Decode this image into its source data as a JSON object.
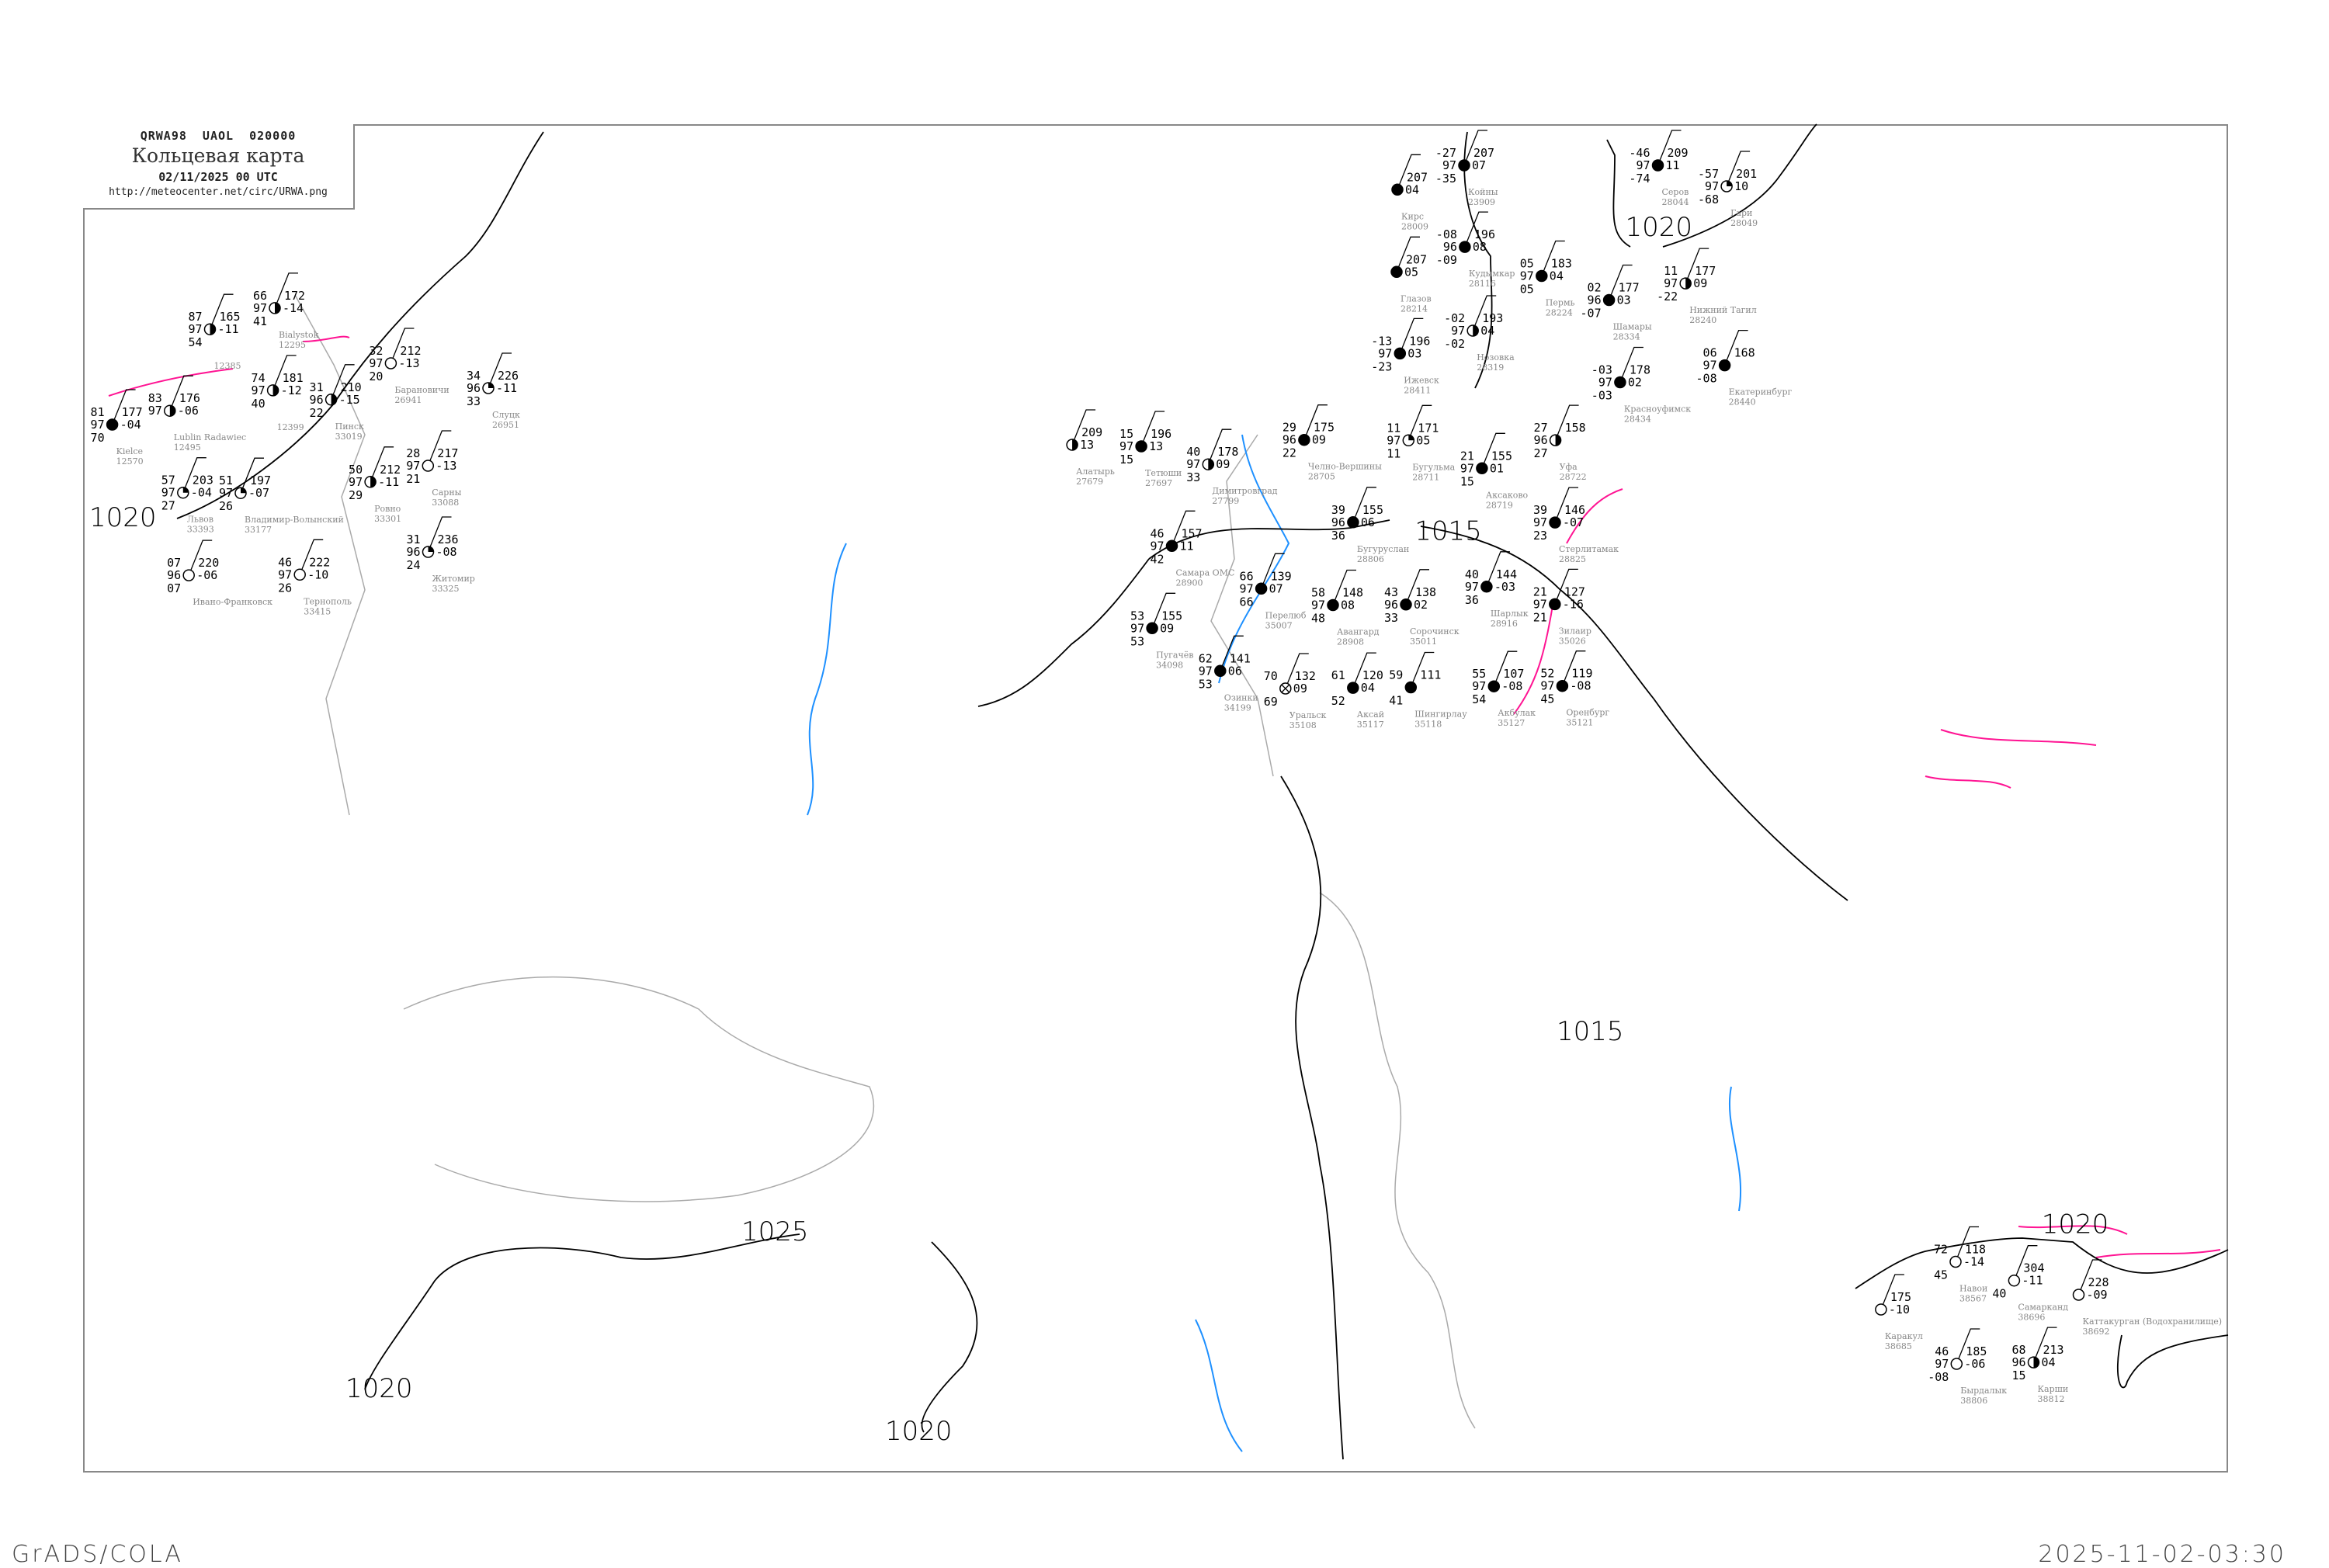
{
  "header": {
    "code": "QRWA98   UAOL   020000",
    "title": "Кольцевая карта",
    "date": "02/11/2025 00 UTC",
    "url": "http://meteocenter.net/circ/URWA.png"
  },
  "footer": {
    "left": "GrADS/COLA",
    "right": "2025-11-02-03:30"
  },
  "colors": {
    "isobar": "#000000",
    "front_like_lines": "#ff1493",
    "rivers": "#1e90ff",
    "borders": "#aaaaaa",
    "station_name": "#888888",
    "low_cloud_highlight": "#ffff99",
    "snow_marker": "#3399ff",
    "precip_marker": "#22bb22"
  },
  "isobar_labels": [
    "1020",
    "1015",
    "1020",
    "1020",
    "1025",
    "1015",
    "1020",
    "1020"
  ],
  "stations": [
    {
      "name": "Bialystok",
      "id": "12295",
      "t": "66",
      "p_tend": "97",
      "dew": "41",
      "p": "172",
      "tend": "-14",
      "cloud": "half"
    },
    {
      "name": "",
      "id": "12385",
      "t": "87",
      "p_tend": "97",
      "dew": "54",
      "p": "165",
      "tend": "-11",
      "cloud": "half"
    },
    {
      "name": "",
      "id": "12399",
      "t": "74",
      "p_tend": "97",
      "dew": "40",
      "p": "181",
      "tend": "-12",
      "cloud": "half"
    },
    {
      "name": "Kielce",
      "id": "12570",
      "t": "81",
      "p_tend": "97",
      "dew": "70",
      "p": "177",
      "tend": "-04",
      "cloud": "full"
    },
    {
      "name": "Lublin Radawiec",
      "id": "12495",
      "t": "83",
      "p_tend": "97",
      "dew": "",
      "p": "176",
      "tend": "-06",
      "cloud": "half"
    },
    {
      "name": "Владимир-Волынский",
      "id": "33177",
      "t": "51",
      "p_tend": "97",
      "dew": "26",
      "p": "197",
      "tend": "-07",
      "cloud": "quarter"
    },
    {
      "name": "Львов",
      "id": "33393",
      "t": "57",
      "p_tend": "97",
      "dew": "27",
      "p": "203",
      "tend": "-04",
      "cloud": "quarter"
    },
    {
      "name": "Ивано-Франковск",
      "id": "",
      "t": "07",
      "p_tend": "96",
      "dew": "07",
      "p": "220",
      "tend": "-06",
      "cloud": "empty"
    },
    {
      "name": "Тернополь",
      "id": "33415",
      "t": "46",
      "p_tend": "97",
      "dew": "26",
      "p": "222",
      "tend": "-10",
      "cloud": "empty"
    },
    {
      "name": "Барановичи",
      "id": "26941",
      "t": "32",
      "p_tend": "97",
      "dew": "20",
      "p": "212",
      "tend": "-13",
      "cloud": "empty"
    },
    {
      "name": "Слуцк",
      "id": "26951",
      "t": "34",
      "p_tend": "96",
      "dew": "33",
      "p": "226",
      "tend": "-11",
      "cloud": "quarter"
    },
    {
      "name": "Пинск",
      "id": "33019",
      "t": "31",
      "p_tend": "96",
      "dew": "22",
      "p": "210",
      "tend": "-15",
      "cloud": "half"
    },
    {
      "name": "Сарны",
      "id": "33088",
      "t": "28",
      "p_tend": "97",
      "dew": "21",
      "p": "217",
      "tend": "-13",
      "cloud": "empty"
    },
    {
      "name": "Ровно",
      "id": "33301",
      "t": "50",
      "p_tend": "97",
      "dew": "29",
      "p": "212",
      "tend": "-11",
      "cloud": "half"
    },
    {
      "name": "Житомир",
      "id": "33325",
      "t": "31",
      "p_tend": "96",
      "dew": "24",
      "p": "236",
      "tend": "-08",
      "cloud": "quarter"
    },
    {
      "name": "Алатырь",
      "id": "27679",
      "t": "",
      "p_tend": "",
      "dew": "",
      "p": "209",
      "tend": "13",
      "cloud": "half"
    },
    {
      "name": "Тетюши",
      "id": "27697",
      "t": "15",
      "p_tend": "97",
      "dew": "15",
      "p": "196",
      "tend": "13",
      "cloud": "full"
    },
    {
      "name": "Димитровград",
      "id": "27799",
      "t": "40",
      "p_tend": "97",
      "dew": "33",
      "p": "178",
      "tend": "09",
      "cloud": "half"
    },
    {
      "name": "Челно-Вершины",
      "id": "28705",
      "t": "29",
      "p_tend": "96",
      "dew": "22",
      "p": "175",
      "tend": "09",
      "cloud": "full"
    },
    {
      "name": "Бугульма",
      "id": "28711",
      "t": "11",
      "p_tend": "97",
      "dew": "11",
      "p": "171",
      "tend": "05",
      "cloud": "quarter"
    },
    {
      "name": "Аксаково",
      "id": "28719",
      "t": "21",
      "p_tend": "97",
      "dew": "15",
      "p": "155",
      "tend": "01",
      "cloud": "full"
    },
    {
      "name": "Уфа",
      "id": "28722",
      "t": "27",
      "p_tend": "96",
      "dew": "27",
      "p": "158",
      "tend": "",
      "cloud": "half"
    },
    {
      "name": "Бугуруслан",
      "id": "28806",
      "t": "39",
      "p_tend": "96",
      "dew": "36",
      "p": "155",
      "tend": "06",
      "cloud": "full"
    },
    {
      "name": "Стерлитамак",
      "id": "28825",
      "t": "39",
      "p_tend": "97",
      "dew": "23",
      "p": "146",
      "tend": "-07",
      "cloud": "full"
    },
    {
      "name": "Самара ОМС",
      "id": "28900",
      "t": "46",
      "p_tend": "97",
      "dew": "42",
      "p": "157",
      "tend": "11",
      "cloud": "full"
    },
    {
      "name": "Авангард",
      "id": "28908",
      "t": "58",
      "p_tend": "97",
      "dew": "48",
      "p": "148",
      "tend": "08",
      "cloud": "full"
    },
    {
      "name": "Сорочинск",
      "id": "35011",
      "t": "43",
      "p_tend": "96",
      "dew": "33",
      "p": "138",
      "tend": "02",
      "cloud": "full"
    },
    {
      "name": "Шарлык",
      "id": "28916",
      "t": "40",
      "p_tend": "97",
      "dew": "36",
      "p": "144",
      "tend": "-03",
      "cloud": "full"
    },
    {
      "name": "Пугачёв",
      "id": "34098",
      "t": "53",
      "p_tend": "97",
      "dew": "53",
      "p": "155",
      "tend": "09",
      "cloud": "full"
    },
    {
      "name": "Перелюб",
      "id": "35007",
      "t": "66",
      "p_tend": "97",
      "dew": "66",
      "p": "139",
      "tend": "07",
      "cloud": "full"
    },
    {
      "name": "Озинки",
      "id": "34199",
      "t": "62",
      "p_tend": "97",
      "dew": "53",
      "p": "141",
      "tend": "06",
      "cloud": "full"
    },
    {
      "name": "Уральск",
      "id": "35108",
      "t": "70",
      "p_tend": "",
      "dew": "69",
      "p": "132",
      "tend": "09",
      "cloud": "obscured"
    },
    {
      "name": "Аксай",
      "id": "35117",
      "t": "61",
      "p_tend": "",
      "dew": "52",
      "p": "120",
      "tend": "04",
      "cloud": "full"
    },
    {
      "name": "Шингирлау",
      "id": "35118",
      "t": "59",
      "p_tend": "",
      "dew": "41",
      "p": "111",
      "tend": "",
      "cloud": "full"
    },
    {
      "name": "Оренбург",
      "id": "35121",
      "t": "52",
      "p_tend": "97",
      "dew": "45",
      "p": "119",
      "tend": "-08",
      "cloud": "full"
    },
    {
      "name": "Акбулак",
      "id": "35127",
      "t": "55",
      "p_tend": "97",
      "dew": "54",
      "p": "107",
      "tend": "-08",
      "cloud": "full"
    },
    {
      "name": "Зилаир",
      "id": "35026",
      "t": "21",
      "p_tend": "97",
      "dew": "21",
      "p": "127",
      "tend": "-16",
      "cloud": "full"
    },
    {
      "name": "Койны",
      "id": "23909",
      "t": "-27",
      "p_tend": "97",
      "dew": "-35",
      "p": "207",
      "tend": "07",
      "cloud": "full"
    },
    {
      "name": "Кирс",
      "id": "28009",
      "t": "",
      "p_tend": "",
      "dew": "",
      "p": "207",
      "tend": "04",
      "cloud": "full"
    },
    {
      "name": "Кудымкар",
      "id": "28116",
      "t": "-08",
      "p_tend": "96",
      "dew": "-09",
      "p": "196",
      "tend": "08",
      "cloud": "full"
    },
    {
      "name": "Глазов",
      "id": "28214",
      "t": "",
      "p_tend": "",
      "dew": "",
      "p": "207",
      "tend": "05",
      "cloud": "full"
    },
    {
      "name": "Пермь",
      "id": "28224",
      "t": "05",
      "p_tend": "97",
      "dew": "05",
      "p": "183",
      "tend": "04",
      "cloud": "full"
    },
    {
      "name": "Серов",
      "id": "28044",
      "t": "-46",
      "p_tend": "97",
      "dew": "-74",
      "p": "209",
      "tend": "11",
      "cloud": "full"
    },
    {
      "name": "Гари",
      "id": "28049",
      "t": "-57",
      "p_tend": "97",
      "dew": "-68",
      "p": "201",
      "tend": "10",
      "cloud": "quarter"
    },
    {
      "name": "Нижний Тагил",
      "id": "28240",
      "t": "11",
      "p_tend": "97",
      "dew": "-22",
      "p": "177",
      "tend": "09",
      "cloud": "half"
    },
    {
      "name": "Шамары",
      "id": "28334",
      "t": "02",
      "p_tend": "96",
      "dew": "-07",
      "p": "177",
      "tend": "03",
      "cloud": "full"
    },
    {
      "name": "Нозовка",
      "id": "28319",
      "t": "-02",
      "p_tend": "97",
      "dew": "-02",
      "p": "193",
      "tend": "04",
      "cloud": "half"
    },
    {
      "name": "Ижевск",
      "id": "28411",
      "t": "-13",
      "p_tend": "97",
      "dew": "-23",
      "p": "196",
      "tend": "03",
      "cloud": "full"
    },
    {
      "name": "Красноуфимск",
      "id": "28434",
      "t": "-03",
      "p_tend": "97",
      "dew": "-03",
      "p": "178",
      "tend": "02",
      "cloud": "full"
    },
    {
      "name": "Екатеринбург",
      "id": "28440",
      "t": "06",
      "p_tend": "97",
      "dew": "-08",
      "p": "168",
      "tend": "",
      "cloud": "full"
    },
    {
      "name": "Навои",
      "id": "38567",
      "t": "72",
      "p_tend": "",
      "dew": "45",
      "p": "118",
      "tend": "-14",
      "cloud": "empty"
    },
    {
      "name": "Каттакурган (Водохранилище)",
      "id": "38692",
      "t": "",
      "p_tend": "",
      "dew": "",
      "p": "228",
      "tend": "-09",
      "cloud": "empty"
    },
    {
      "name": "Самарканд",
      "id": "38696",
      "t": "",
      "p_tend": "",
      "dew": "40",
      "p": "304",
      "tend": "-11",
      "cloud": "empty"
    },
    {
      "name": "Каракул",
      "id": "38685",
      "t": "",
      "p_tend": "",
      "dew": "",
      "p": "175",
      "tend": "-10",
      "cloud": "empty"
    },
    {
      "name": "Карши",
      "id": "38812",
      "t": "68",
      "p_tend": "96",
      "dew": "15",
      "p": "213",
      "tend": "04",
      "cloud": "half"
    },
    {
      "name": "Бырдалык",
      "id": "38806",
      "t": "46",
      "p_tend": "97",
      "dew": "-08",
      "p": "185",
      "tend": "-06",
      "cloud": "empty"
    }
  ]
}
